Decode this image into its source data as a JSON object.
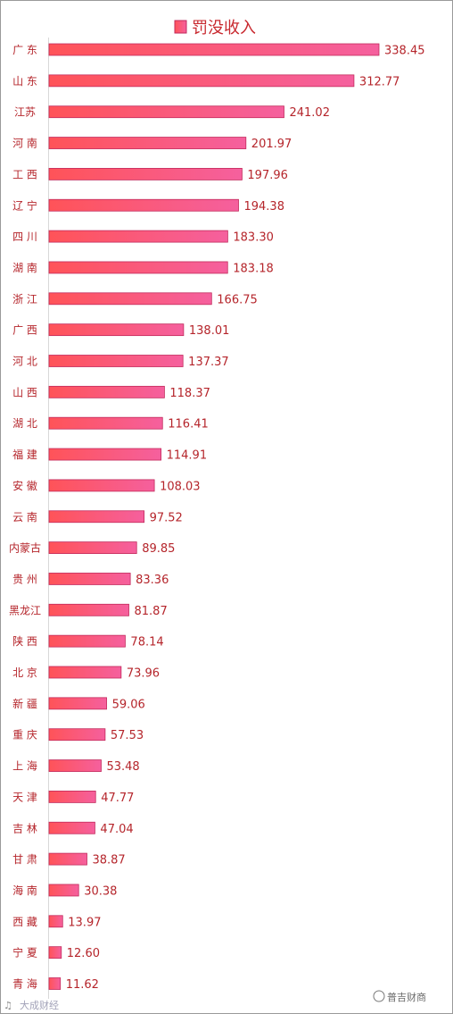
{
  "chart_data": {
    "type": "bar",
    "orientation": "horizontal",
    "legend": "top-center",
    "grid": false,
    "xlim": [
      0,
      350
    ],
    "series": [
      {
        "name": "罚没收入",
        "color": "#f25a7e",
        "values": [
          338.45,
          312.77,
          241.02,
          201.97,
          197.96,
          194.38,
          183.3,
          183.18,
          166.75,
          138.01,
          137.37,
          118.37,
          116.41,
          114.91,
          108.03,
          97.52,
          89.85,
          83.36,
          81.87,
          78.14,
          73.96,
          59.06,
          57.53,
          53.48,
          47.77,
          47.04,
          38.87,
          30.38,
          13.97,
          12.6,
          11.62
        ],
        "labels": [
          "338.45",
          "312.77",
          "241.02",
          "201.97",
          "197.96",
          "194.38",
          "183.30",
          "183.18",
          "166.75",
          "138.01",
          "137.37",
          "118.37",
          "116.41",
          "114.91",
          "108.03",
          "97.52",
          "89.85",
          "83.36",
          "81.87",
          "78.14",
          "73.96",
          "59.06",
          "57.53",
          "53.48",
          "47.77",
          "47.04",
          "38.87",
          "30.38",
          "13.97",
          "12.60",
          "11.62"
        ]
      }
    ],
    "categories": [
      "广 东",
      "山 东",
      "江苏",
      "河 南",
      "工 西",
      "辽 宁",
      "四 川",
      "湖 南",
      "浙 江",
      "广 西",
      "河 北",
      "山 西",
      "湖 北",
      "福 建",
      "安 徽",
      "云 南",
      "内蒙古",
      "贵 州",
      "黑龙江",
      "陕 西",
      "北 京",
      "新 疆",
      "重 庆",
      "上 海",
      "天 津",
      "吉 林",
      "甘 肃",
      "海 南",
      "西 藏",
      "宁 夏",
      "青 海"
    ]
  },
  "colors": {
    "bar_left": "#ff5358",
    "bar_right": "#f5609e",
    "bar_stroke": "#c22a5c",
    "label": "#b5252b",
    "legend_text": "#c8282e"
  },
  "watermarks": {
    "left": "大成财经",
    "right": "普吉财商"
  }
}
